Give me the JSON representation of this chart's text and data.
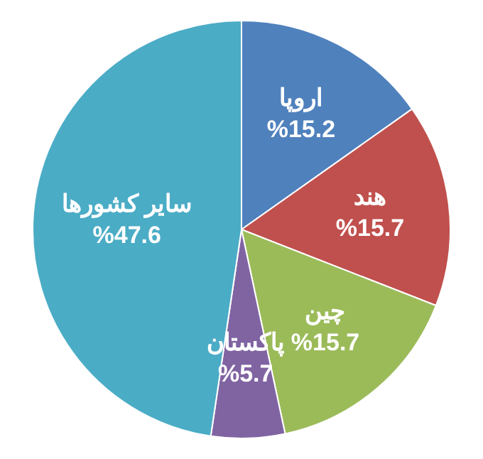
{
  "chart_data": {
    "type": "pie",
    "categories": [
      "اروپا",
      "هند",
      "چین",
      "پاکستان",
      "سایر کشورها"
    ],
    "values": [
      15.2,
      15.7,
      15.7,
      5.7,
      47.6
    ],
    "colors": [
      "#4f81bd",
      "#c0504d",
      "#9bbb59",
      "#8064a2",
      "#4bacc6"
    ],
    "value_labels": [
      "%15.2",
      "%15.7",
      "%15.7",
      "%5.7",
      "%47.6"
    ],
    "legend": false
  }
}
